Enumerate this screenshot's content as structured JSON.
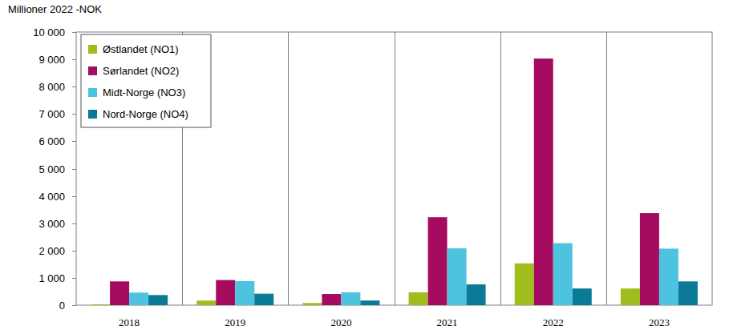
{
  "chart_data": {
    "type": "bar",
    "y_label": "Millioner 2022 -NOK",
    "categories": [
      "2018",
      "2019",
      "2020",
      "2021",
      "2022",
      "2023"
    ],
    "series": [
      {
        "name": "Østlandet (NO1)",
        "color": "#9fbe1e",
        "values": [
          30,
          170,
          80,
          470,
          1530,
          610
        ]
      },
      {
        "name": "Sørlandet (NO2)",
        "color": "#a50b5e",
        "values": [
          870,
          920,
          410,
          3220,
          9030,
          3370
        ]
      },
      {
        "name": "Midt-Norge (NO3)",
        "color": "#4ec3e0",
        "values": [
          460,
          880,
          470,
          2080,
          2270,
          2070
        ]
      },
      {
        "name": "Nord-Norge (NO4)",
        "color": "#0a7a96",
        "values": [
          370,
          420,
          170,
          760,
          610,
          870
        ]
      }
    ],
    "ylim": [
      0,
      10000
    ],
    "yticks": [
      0,
      {
        "value": 1000,
        "label": "1 000"
      },
      {
        "value": 2000,
        "label": "2 000"
      },
      {
        "value": 3000,
        "label": "3 000"
      },
      {
        "value": 4000,
        "label": "4 000"
      },
      {
        "value": 5000,
        "label": "5 000"
      },
      {
        "value": 6000,
        "label": "6 000"
      },
      {
        "value": 7000,
        "label": "7 000"
      },
      {
        "value": 8000,
        "label": "8 000"
      },
      {
        "value": 9000,
        "label": "9 000"
      },
      {
        "value": 10000,
        "label": "10 000"
      }
    ],
    "grid": true,
    "legend": "upper left"
  }
}
